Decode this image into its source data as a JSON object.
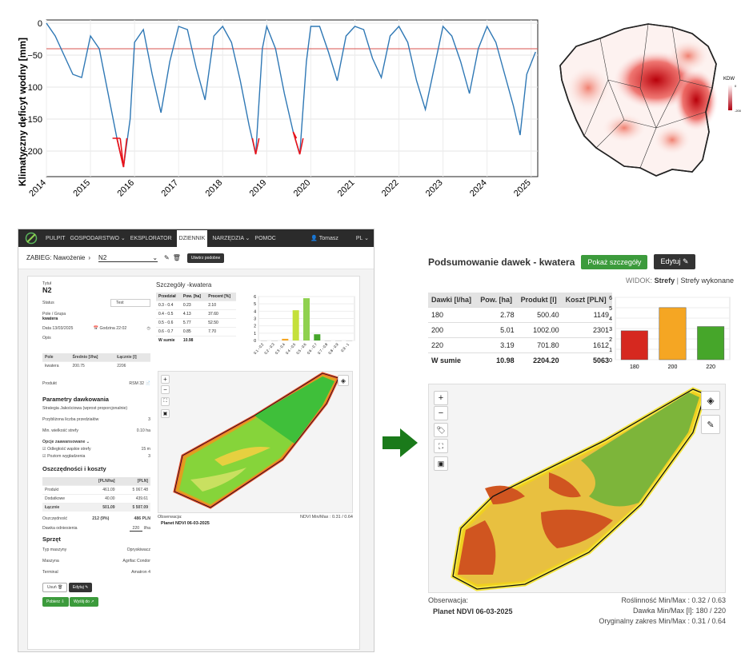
{
  "chart_data": [
    {
      "type": "line",
      "ylabel": "Klimatyczny deficyt wodny [mm]",
      "x_ticks": [
        "2014",
        "2015",
        "2016",
        "2017",
        "2018",
        "2019",
        "2020",
        "2021",
        "2022",
        "2023",
        "2024",
        "2025"
      ],
      "y_ticks": [
        "0",
        "−50",
        "−100",
        "−150",
        "−200"
      ],
      "ylim": [
        -240,
        5
      ],
      "threshold": -40,
      "colors": {
        "series": "#2f78b5",
        "threshold": "#d9534f",
        "drought": "#e8141c"
      },
      "series": [
        {
          "x": [
            2014,
            2014.2,
            2014.4,
            2014.6,
            2014.8,
            2015,
            2015.2,
            2015.4,
            2015.6,
            2015.75,
            2015.9,
            2016,
            2016.2,
            2016.4,
            2016.6,
            2016.8,
            2017,
            2017.2,
            2017.4,
            2017.6,
            2017.8,
            2018,
            2018.2,
            2018.4,
            2018.6,
            2018.75,
            2018.9,
            2019,
            2019.2,
            2019.4,
            2019.6,
            2019.75,
            2019.9,
            2020,
            2020.2,
            2020.4,
            2020.6,
            2020.8,
            2021,
            2021.2,
            2021.4,
            2021.6,
            2021.8,
            2022,
            2022.2,
            2022.4,
            2022.6,
            2022.8,
            2023,
            2023.2,
            2023.4,
            2023.6,
            2023.8,
            2024,
            2024.2,
            2024.4,
            2024.6,
            2024.75,
            2024.9,
            2025.1
          ],
          "y": [
            0,
            -20,
            -50,
            -80,
            -85,
            -20,
            -40,
            -110,
            -180,
            -225,
            -150,
            -30,
            -10,
            -80,
            -140,
            -60,
            -5,
            -10,
            -70,
            -120,
            -20,
            -5,
            -30,
            -90,
            -160,
            -205,
            -40,
            -5,
            -40,
            -110,
            -170,
            -205,
            -60,
            -5,
            -5,
            -45,
            -90,
            -20,
            -5,
            -10,
            -55,
            -85,
            -20,
            -5,
            -30,
            -90,
            -135,
            -70,
            -5,
            -20,
            -60,
            -110,
            -40,
            -5,
            -30,
            -80,
            -130,
            -175,
            -80,
            -45
          ]
        }
      ]
    },
    {
      "type": "bar",
      "categories": [
        "0.1 - 0.2",
        "0.2 - 0.3",
        "0.3 - 0.4",
        "0.4 - 0.5",
        "0.5 - 0.6",
        "0.6 - 0.7",
        "0.7 - 0.8",
        "0.8 - 0.9",
        "0.9 - 1"
      ],
      "values": [
        0,
        0,
        0.23,
        4.13,
        5.77,
        0.85,
        0,
        0,
        0
      ],
      "ylim": [
        0,
        6
      ],
      "y_ticks": [
        "0",
        "1",
        "2",
        "3",
        "4",
        "5",
        "6"
      ]
    },
    {
      "type": "bar",
      "categories": [
        "180",
        "200",
        "220"
      ],
      "values": [
        2.78,
        5.01,
        3.19
      ],
      "ylim": [
        0,
        6
      ],
      "y_ticks": [
        "0",
        "1",
        "2",
        "3",
        "4",
        "5",
        "6"
      ],
      "colors": [
        "#d6281f",
        "#f5a623",
        "#46a62a"
      ]
    }
  ],
  "map_legend": {
    "title": "KDW",
    "max": "0",
    "min": "-200"
  },
  "navbar": {
    "items": [
      "PULPIT",
      "GOSPODARSTWO ⌄",
      "EKSPLORATOR",
      "DZIENNIK",
      "NARZĘDZIA ⌄",
      "POMOC"
    ],
    "user": "Tomasz",
    "lang": "PL ⌄"
  },
  "zabieg": {
    "label": "ZABIEG: Nawożenie",
    "value": "N2",
    "similar_btn": "Utwórz podobne"
  },
  "left": {
    "title_label": "Tytuł",
    "title": "N2",
    "status_label": "Status",
    "status": "Test",
    "field_label": "Pole / Grupa",
    "field": "kwatera",
    "date": "Data 13/03/2025",
    "hour": "Godzina 22:02",
    "desc": "Opis",
    "field_tbl": {
      "headers": [
        "Pole",
        "Średnio [l/ha]",
        "Łącznie [l]"
      ],
      "rows": [
        [
          "kwatera",
          "200.75",
          "2206"
        ]
      ]
    },
    "product_label": "Produkt",
    "product": "RSM 32",
    "params_title": "Parametry dawkowania",
    "strategy_label": "Strategia",
    "strategy": "Jakościowa (wprost proporcjonalnie)",
    "zones_label": "Przybliżona liczba przedziałów",
    "zones": "3",
    "minzone_label": "Min. wielkość strefy",
    "minzone": "0.10 ha",
    "adv_label": "Opcje zaawansowane",
    "edge_label": "Odległość wąskie strefy",
    "edge": "15 m",
    "smooth_label": "Poziom wygładzenia",
    "smooth": "3",
    "savings_title": "Oszczędności i koszty",
    "cost_headers": [
      "",
      "[PLN/ha]",
      "[PLN]"
    ],
    "cost_rows": [
      [
        "Produkt",
        "461.09",
        "5 067.48"
      ],
      [
        "Dodatkowe",
        "40.00",
        "439.61"
      ],
      [
        "Łącznie",
        "501.09",
        "5 507.09"
      ]
    ],
    "saving_label": "Oszczędność",
    "saving_a": "212 (9%)",
    "saving_b": "486 PLN",
    "ref_label": "Dawka odniesienia",
    "ref": "220",
    "ref_unit": "l/ha",
    "equip_title": "Sprzęt",
    "machine_label": "Typ maszyny",
    "machine": "Opryskiwacz",
    "machine2_label": "Maszyna",
    "machine2": "Agrifac Condor",
    "terminal_label": "Terminal",
    "terminal": "Amatron 4",
    "del_btn": "Usuń",
    "edit_btn": "Edytuj",
    "download_btn": "Pobierz",
    "send_btn": "Wyślij do"
  },
  "detail": {
    "title": "Szczegóły -kwatera",
    "headers": [
      "Przedział",
      "Pow. [ha]",
      "Procent [%]"
    ],
    "rows": [
      [
        "0.3 - 0.4",
        "0.23",
        "2.10"
      ],
      [
        "0.4 - 0.5",
        "4.13",
        "37.60"
      ],
      [
        "0.5 - 0.6",
        "5.77",
        "52.50"
      ],
      [
        "0.6 - 0.7",
        "0.85",
        "7.70"
      ]
    ],
    "sum": [
      "W sumie",
      "10.98",
      ""
    ],
    "obs_label": "Obserwacja:",
    "obs": "Planet NDVI 06-03-2025",
    "ndvi": "NDVI Min/Max : 0.31 / 0.64"
  },
  "summary": {
    "title": "Podsumowanie dawek - kwatera",
    "show_btn": "Pokaż szczegóły",
    "edit_btn": "Edytuj",
    "view_label": "WIDOK:",
    "view1": "Strefy",
    "view_sep": "|",
    "view2": "Strefy wykonane",
    "headers": [
      "Dawki [l/ha]",
      "Pow. [ha]",
      "Produkt [l]",
      "Koszt [PLN]"
    ],
    "rows": [
      [
        "180",
        "2.78",
        "500.40",
        "1149"
      ],
      [
        "200",
        "5.01",
        "1002.00",
        "2301"
      ],
      [
        "220",
        "3.19",
        "701.80",
        "1612"
      ]
    ],
    "sum": [
      "W sumie",
      "10.98",
      "2204.20",
      "5063"
    ],
    "obs_label": "Obserwacja:",
    "obs": "Planet NDVI 06-03-2025",
    "stat1": "Roślinność Min/Max : 0.32 /  0.63",
    "stat2": "Dawka Min/Max [l]: 180 /  220",
    "stat3": "Oryginalny zakres Min/Max : 0.31 / 0.64"
  }
}
